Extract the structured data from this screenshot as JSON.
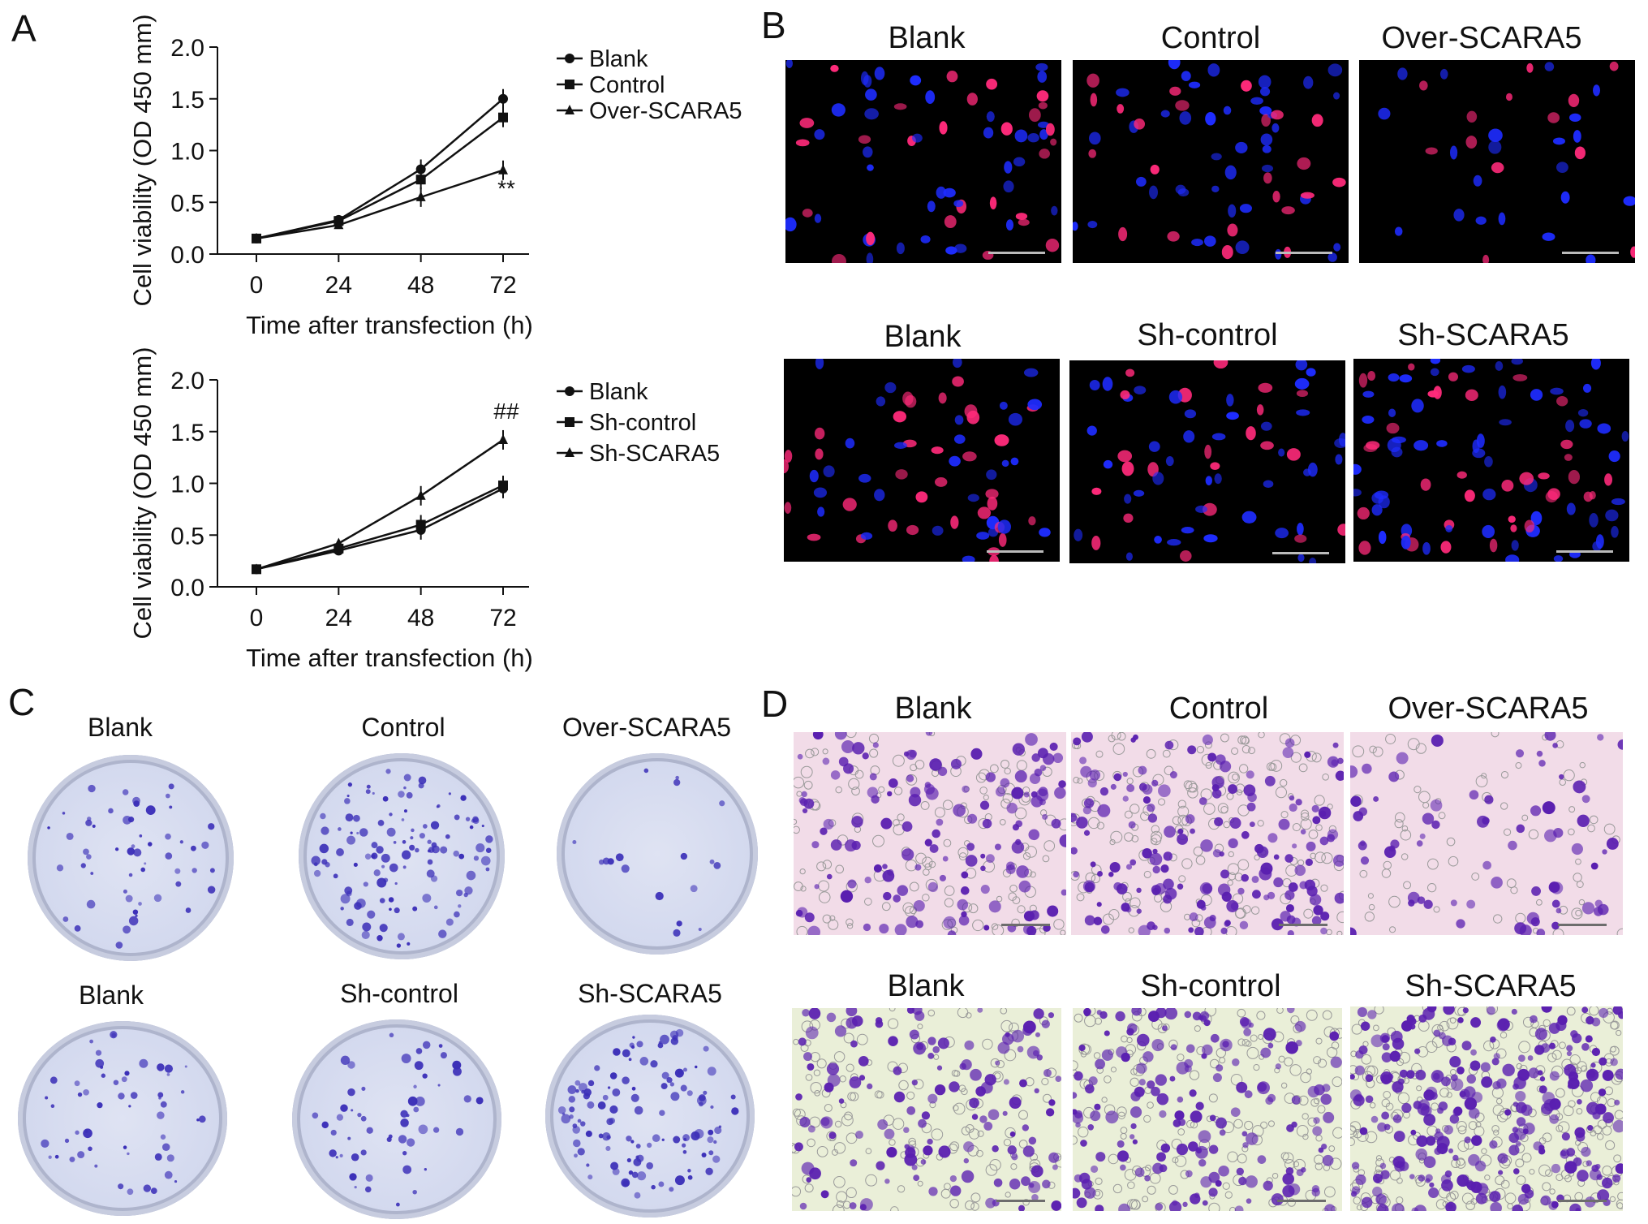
{
  "panels": {
    "A": {
      "letter": "A",
      "charts": [
        {
          "type": "line",
          "ylabel": "Cell viability (OD 450 mm)",
          "xlabel": "Time after transfection (h)",
          "x": [
            0,
            24,
            48,
            72
          ],
          "xticks": [
            "0",
            "24",
            "48",
            "72"
          ],
          "yticks": [
            "0.0",
            "0.5",
            "1.0",
            "1.5",
            "2.0"
          ],
          "ylim": [
            0,
            2.0
          ],
          "series": [
            {
              "name": "Blank",
              "marker": "circle",
              "values": [
                0.15,
                0.33,
                0.82,
                1.5
              ]
            },
            {
              "name": "Control",
              "marker": "square",
              "values": [
                0.15,
                0.32,
                0.72,
                1.32
              ]
            },
            {
              "name": "Over-SCARA5",
              "marker": "triangle",
              "values": [
                0.15,
                0.28,
                0.55,
                0.81
              ]
            }
          ],
          "annotation": "**",
          "legend_position": "top-right"
        },
        {
          "type": "line",
          "ylabel": "Cell viability (OD 450 mm)",
          "xlabel": "Time after transfection (h)",
          "x": [
            0,
            24,
            48,
            72
          ],
          "xticks": [
            "0",
            "24",
            "48",
            "72"
          ],
          "yticks": [
            "0.0",
            "0.5",
            "1.0",
            "1.5",
            "2.0"
          ],
          "ylim": [
            0,
            2.0
          ],
          "series": [
            {
              "name": "Blank",
              "marker": "circle",
              "values": [
                0.17,
                0.35,
                0.55,
                0.95
              ]
            },
            {
              "name": "Sh-control",
              "marker": "square",
              "values": [
                0.17,
                0.37,
                0.6,
                0.98
              ]
            },
            {
              "name": "Sh-SCARA5",
              "marker": "triangle",
              "values": [
                0.17,
                0.42,
                0.88,
                1.42
              ]
            }
          ],
          "annotation": "##",
          "legend_position": "top-right"
        }
      ]
    },
    "B": {
      "letter": "B",
      "top_labels": [
        "Blank",
        "Control",
        "Over-SCARA5"
      ],
      "bottom_labels": [
        "Blank",
        "Sh-control",
        "Sh-SCARA5"
      ]
    },
    "C": {
      "letter": "C",
      "top_labels": [
        "Blank",
        "Control",
        "Over-SCARA5"
      ],
      "bottom_labels": [
        "Blank",
        "Sh-control",
        "Sh-SCARA5"
      ]
    },
    "D": {
      "letter": "D",
      "top_labels": [
        "Blank",
        "Control",
        "Over-SCARA5"
      ],
      "bottom_labels": [
        "Blank",
        "Sh-control",
        "Sh-SCARA5"
      ]
    }
  },
  "colors": {
    "fluor_red": "#ff2a7a",
    "fluor_blue": "#1e2cff",
    "crystal_violet": "#5a1fb0",
    "colony_blue": "#3b2fb8",
    "line": "#111111"
  }
}
